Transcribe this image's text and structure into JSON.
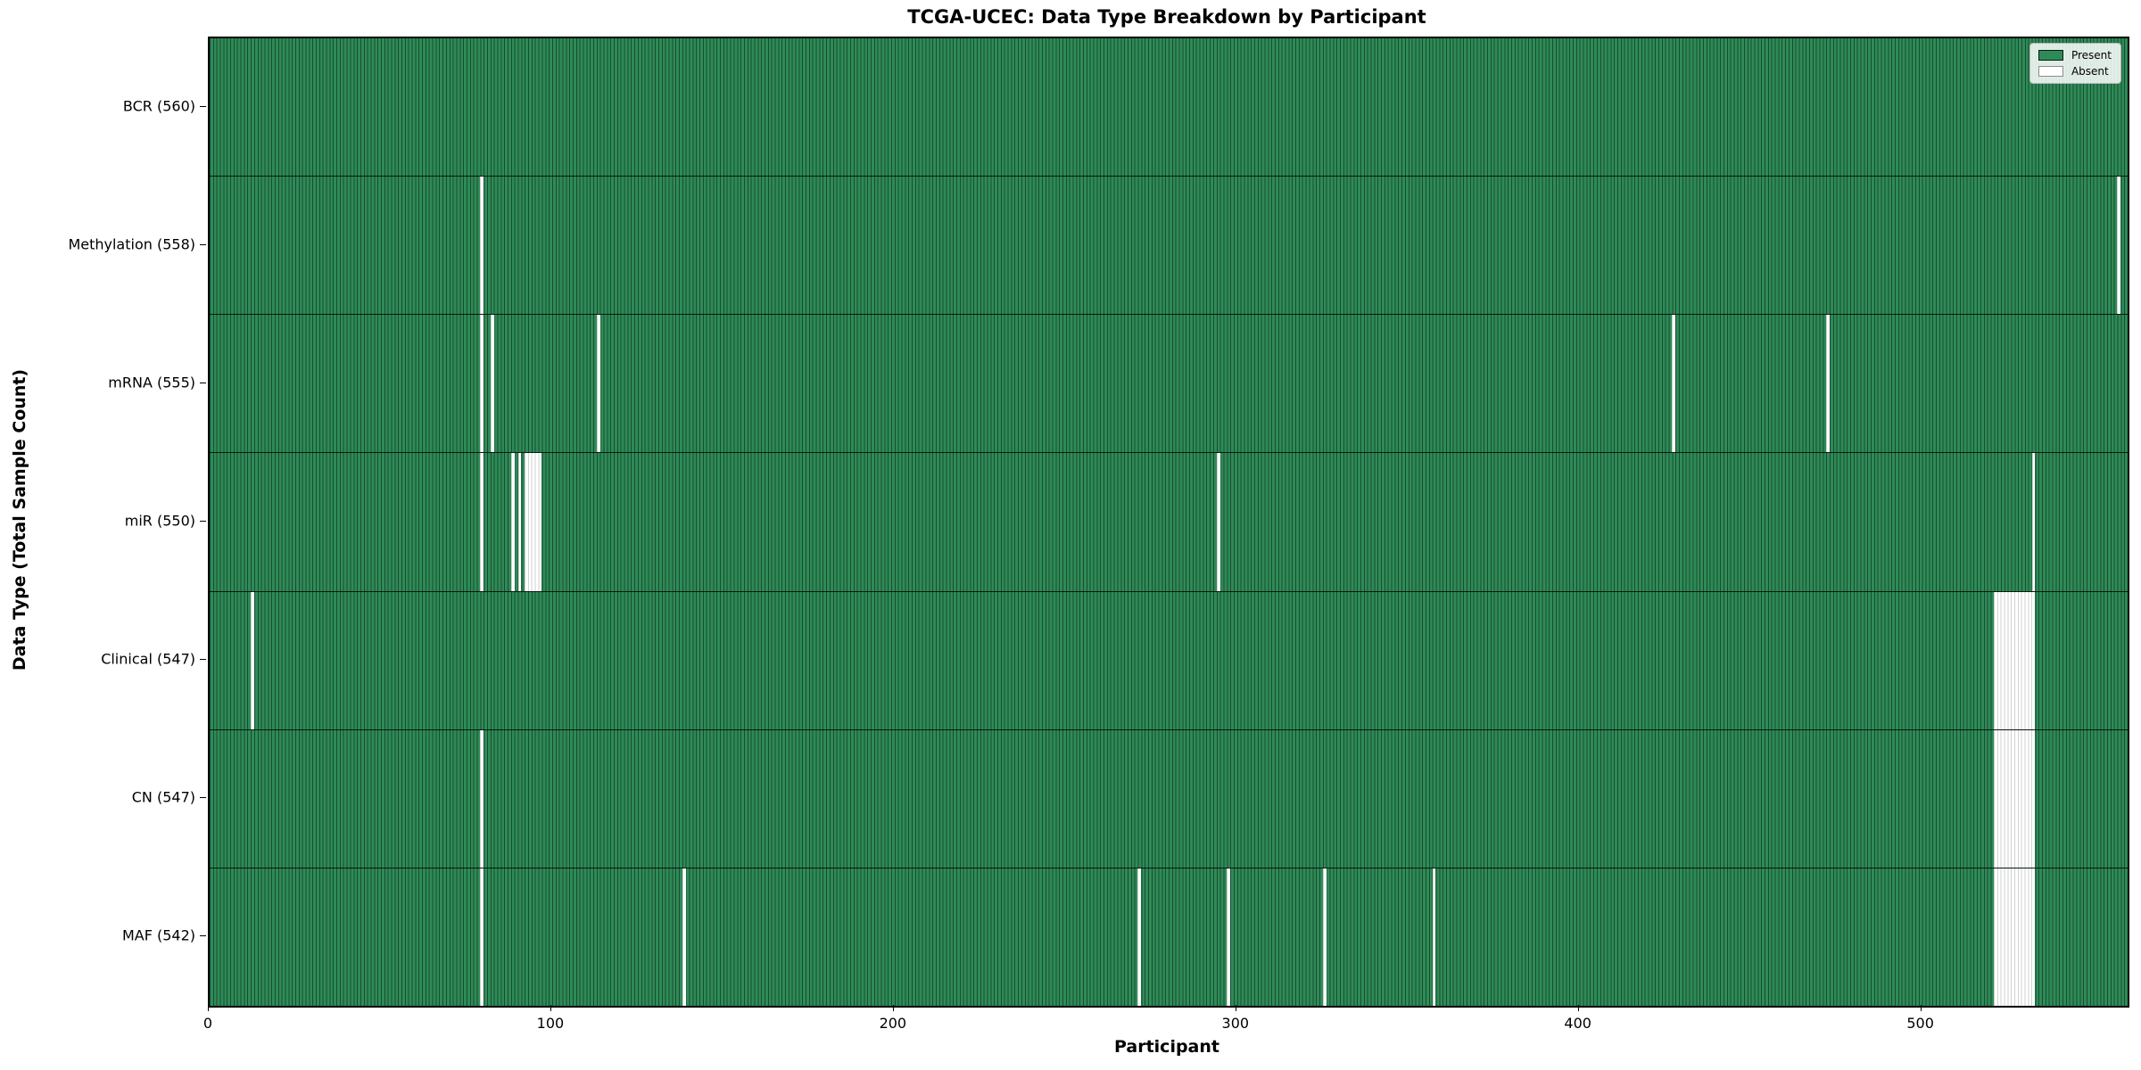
{
  "title": "TCGA-UCEC: Data Type Breakdown by Participant",
  "xlabel": "Participant",
  "ylabel": "Data Type (Total Sample Count)",
  "legend": {
    "present_label": "Present",
    "absent_label": "Absent"
  },
  "colors": {
    "present": "#2e8b57",
    "absent": "#ffffff",
    "edge": "#000000"
  },
  "chart_data": {
    "type": "heatmap",
    "title": "TCGA-UCEC: Data Type Breakdown by Participant",
    "xlabel": "Participant",
    "ylabel": "Data Type (Total Sample Count)",
    "x_ticks": [
      0,
      100,
      200,
      300,
      400,
      500
    ],
    "x_range": [
      0,
      560
    ],
    "n_participants": 560,
    "legend_entries": [
      "Present",
      "Absent"
    ],
    "legend_position": "upper right",
    "grid": false,
    "rows": [
      {
        "label": "BCR (560)",
        "data_type": "BCR",
        "total": 560,
        "absent_participants": []
      },
      {
        "label": "Methylation (558)",
        "data_type": "Methylation",
        "total": 558,
        "absent_participants": [
          79,
          557
        ]
      },
      {
        "label": "mRNA (555)",
        "data_type": "mRNA",
        "total": 555,
        "absent_participants": [
          79,
          82,
          113,
          427,
          472
        ]
      },
      {
        "label": "miR (550)",
        "data_type": "miR",
        "total": 550,
        "absent_participants": [
          79,
          88,
          90,
          92,
          93,
          94,
          95,
          96,
          294,
          532
        ]
      },
      {
        "label": "Clinical (547)",
        "data_type": "Clinical",
        "total": 547,
        "absent_participants": [
          12,
          521,
          522,
          523,
          524,
          525,
          526,
          527,
          528,
          529,
          530,
          531,
          532
        ]
      },
      {
        "label": "CN (547)",
        "data_type": "CN",
        "total": 547,
        "absent_participants": [
          79,
          521,
          522,
          523,
          524,
          525,
          526,
          527,
          528,
          529,
          530,
          531,
          532
        ]
      },
      {
        "label": "MAF (542)",
        "data_type": "MAF",
        "total": 542,
        "absent_participants": [
          79,
          138,
          271,
          297,
          325,
          357,
          521,
          522,
          523,
          524,
          525,
          526,
          527,
          528,
          529,
          530,
          531,
          532
        ]
      }
    ]
  }
}
